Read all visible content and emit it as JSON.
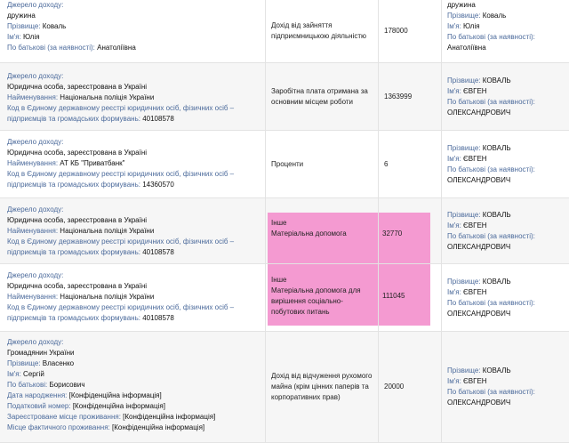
{
  "labels": {
    "source": "Джерело доходу:",
    "surname": "Прізвище:",
    "name": "Ім'я:",
    "patronymic": "По батькові (за наявності):",
    "patronymic_short": "По батькові:",
    "legal_entity": "Юридична особа, зареєстрована в Україні",
    "naming": "Найменування:",
    "edrpou_line1": "Код в Єдиному державному реєстрі юридичних осіб, фізичних осіб –",
    "edrpou_line2": "підприємців та громадських формувань:",
    "citizen": "Громадянин України",
    "birth_date": "Дата народження:",
    "tax_number": "Податковий номер:",
    "registered_residence": "Зареєстроване місце проживання:",
    "actual_residence": "Місце фактичного проживання:"
  },
  "rows": [
    {
      "source": {
        "relation": "дружина",
        "surname": "Коваль",
        "name": "Юлія",
        "patronymic": "Анатоліївна"
      },
      "type_line1": "Дохід від зайняття",
      "type_line2": "підприємницькою діяльністю",
      "amount": "178000",
      "owner": {
        "relation": "дружина",
        "surname": "Коваль",
        "name": "Юлія",
        "patronymic": "Анатоліївна"
      }
    },
    {
      "source": {
        "naming": "Національна поліція України",
        "code": "40108578"
      },
      "type_line1": "Заробітна плата отримана за",
      "type_line2": "основним місцем роботи",
      "amount": "1363999",
      "owner": {
        "surname": "КОВАЛЬ",
        "name": "ЄВГЕН",
        "patronymic": "ОЛЕКСАНДРОВИЧ"
      }
    },
    {
      "source": {
        "naming": "АТ КБ \"Приватбанк\"",
        "code": "14360570"
      },
      "type_line1": "Проценти",
      "amount": "6",
      "owner": {
        "surname": "КОВАЛЬ",
        "name": "ЄВГЕН",
        "patronymic": "ОЛЕКСАНДРОВИЧ"
      }
    },
    {
      "source": {
        "naming": "Національна поліція України",
        "code": "40108578"
      },
      "type_line1": "Інше",
      "type_line2": "Матеріальна допомога",
      "amount": "32770",
      "owner": {
        "surname": "КОВАЛЬ",
        "name": "ЄВГЕН",
        "patronymic": "ОЛЕКСАНДРОВИЧ"
      }
    },
    {
      "source": {
        "naming": "Національна поліція України",
        "code": "40108578"
      },
      "type_line1": "Інше",
      "type_line2": "Матеріальна допомога для",
      "type_line3": "вирішення соціально-",
      "type_line4": "побутових питань",
      "amount": "111045",
      "owner": {
        "surname": "КОВАЛЬ",
        "name": "ЄВГЕН",
        "patronymic": "ОЛЕКСАНДРОВИЧ"
      }
    },
    {
      "source": {
        "surname": "Власенко",
        "name": "Сергій",
        "patronymic": "Борисович",
        "conf": "[Конфіденційна інформація]"
      },
      "type_line1": "Дохід від відчуження рухомого",
      "type_line2": "майна (крім цінних паперів та",
      "type_line3": "корпоративних прав)",
      "amount": "20000",
      "owner": {
        "surname": "КОВАЛЬ",
        "name": "ЄВГЕН",
        "patronymic": "ОЛЕКСАНДРОВИЧ"
      }
    }
  ],
  "colors": {
    "highlight": "#f49ad1",
    "label": "#4b6a9b"
  }
}
